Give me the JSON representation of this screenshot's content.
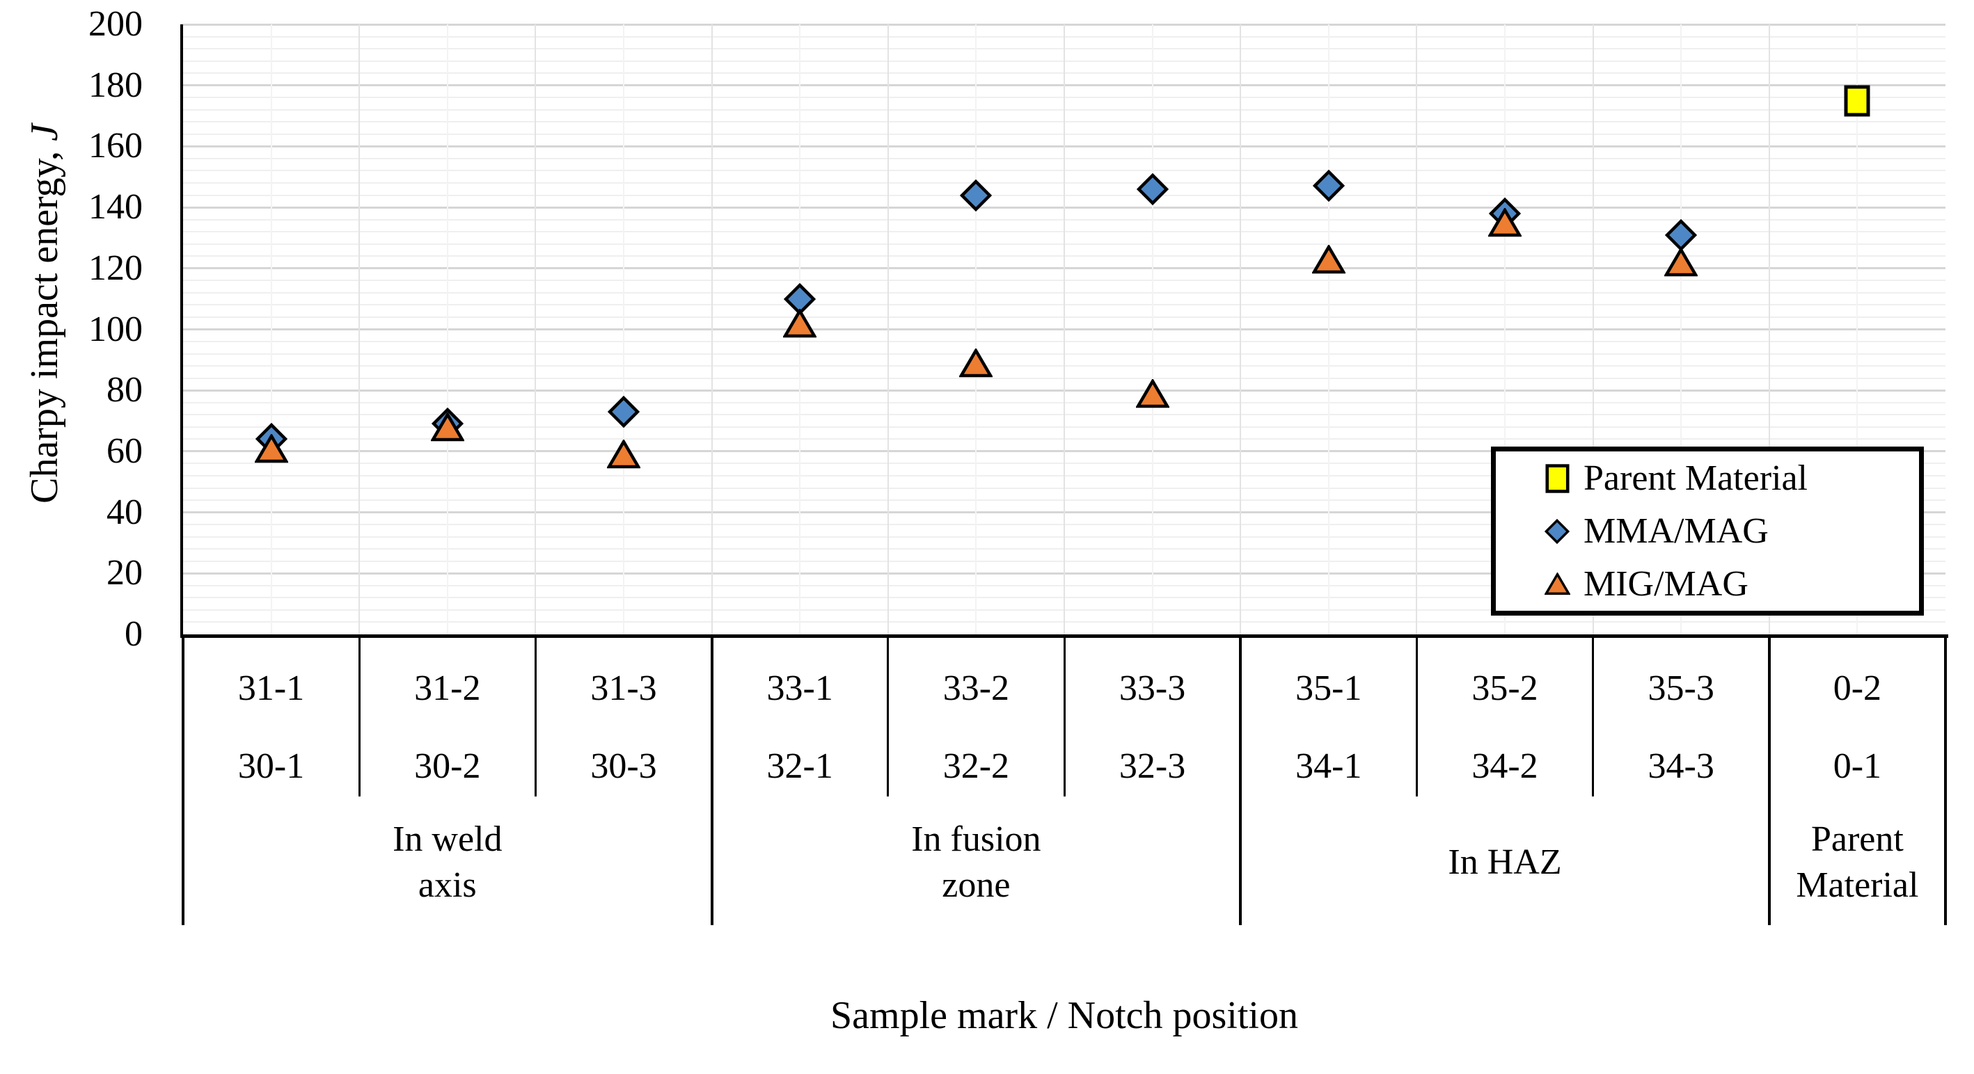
{
  "y_axis": {
    "title_main": "Charpy impact energy, ",
    "title_unit": "J",
    "tick_labels": [
      "0",
      "20",
      "40",
      "60",
      "80",
      "100",
      "120",
      "140",
      "160",
      "180",
      "200"
    ]
  },
  "x_axis": {
    "title": "Sample mark / Notch position"
  },
  "legend": {
    "order": [
      "Parent Material",
      "MMA/MAG",
      "MIG/MAG"
    ]
  },
  "colors": {
    "mma_blue": "#4E87C5",
    "mig_orange": "#ED7D31",
    "parent_yellow": "#FFFF00",
    "marker_outline": "#000000",
    "grid_major": "#D6D6D6",
    "grid_minor": "#EFEFEF",
    "grid_vertical_boundary": "#E3E3E3",
    "grid_vertical_center": "#F3F3F3",
    "axis_black": "#000000"
  },
  "chart_data": {
    "type": "scatter",
    "title": "",
    "xlabel": "Sample mark / Notch position",
    "ylabel": "Charpy impact energy, J",
    "ylim": [
      0,
      200
    ],
    "ytick_step": 20,
    "yminor_step": 4,
    "grid": "horizontal major+minor; light vertical lines at category centers and boundaries",
    "legend_position": "inside right, above x-axis",
    "categories": [
      {
        "row1": "31-1",
        "row2": "30-1"
      },
      {
        "row1": "31-2",
        "row2": "30-2"
      },
      {
        "row1": "31-3",
        "row2": "30-3"
      },
      {
        "row1": "33-1",
        "row2": "32-1"
      },
      {
        "row1": "33-2",
        "row2": "32-2"
      },
      {
        "row1": "33-3",
        "row2": "32-3"
      },
      {
        "row1": "35-1",
        "row2": "34-1"
      },
      {
        "row1": "35-2",
        "row2": "34-2"
      },
      {
        "row1": "35-3",
        "row2": "34-3"
      },
      {
        "row1": "0-2",
        "row2": "0-1"
      }
    ],
    "groups": [
      {
        "label": "In weld axis",
        "start": 0,
        "end": 2
      },
      {
        "label": "In fusion zone",
        "start": 3,
        "end": 5
      },
      {
        "label": "In HAZ",
        "start": 6,
        "end": 8
      },
      {
        "label": "Parent Material",
        "start": 9,
        "end": 9
      }
    ],
    "series": [
      {
        "name": "MMA/MAG",
        "marker": "diamond",
        "color": "#4E87C5",
        "values": [
          64,
          69,
          73,
          110,
          144,
          146,
          147,
          138,
          131,
          null
        ]
      },
      {
        "name": "MIG/MAG",
        "marker": "triangle",
        "color": "#ED7D31",
        "values": [
          61,
          68,
          59,
          102,
          89,
          79,
          123,
          135,
          122,
          null
        ]
      },
      {
        "name": "Parent Material",
        "marker": "square",
        "color": "#FFFF00",
        "values": [
          null,
          null,
          null,
          null,
          null,
          null,
          null,
          null,
          null,
          175
        ]
      }
    ]
  }
}
